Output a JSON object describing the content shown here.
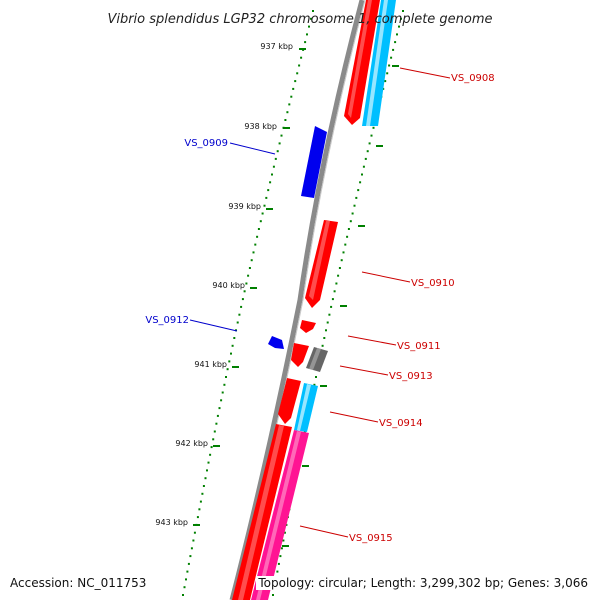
{
  "title": "Vibrio splendidus LGP32 chromosome 1, complete genome",
  "footer": {
    "accession": "Accession: NC_011753",
    "summary": "Topology: circular; Length: 3,299,302 bp; Genes: 3,066"
  },
  "colors": {
    "forward_gene": "#ff0000",
    "reverse_gene": "#0000ee",
    "rna": "#00bfff",
    "pseudo": "#666666",
    "misc": "#ff1493",
    "tick": "#008000",
    "backbone": "#888888"
  },
  "kbp_ticks": [
    {
      "label": "937 kbp"
    },
    {
      "label": "938 kbp"
    },
    {
      "label": "939 kbp"
    },
    {
      "label": "940 kbp"
    },
    {
      "label": "941 kbp"
    },
    {
      "label": "942 kbp"
    },
    {
      "label": "943 kbp"
    }
  ],
  "gene_labels": [
    {
      "name": "VS_0908",
      "strand": "forward"
    },
    {
      "name": "VS_0909",
      "strand": "reverse"
    },
    {
      "name": "VS_0910",
      "strand": "forward"
    },
    {
      "name": "VS_0912",
      "strand": "reverse"
    },
    {
      "name": "VS_0911",
      "strand": "forward"
    },
    {
      "name": "VS_0913",
      "strand": "forward"
    },
    {
      "name": "VS_0914",
      "strand": "forward"
    },
    {
      "name": "VS_0915",
      "strand": "forward"
    }
  ]
}
